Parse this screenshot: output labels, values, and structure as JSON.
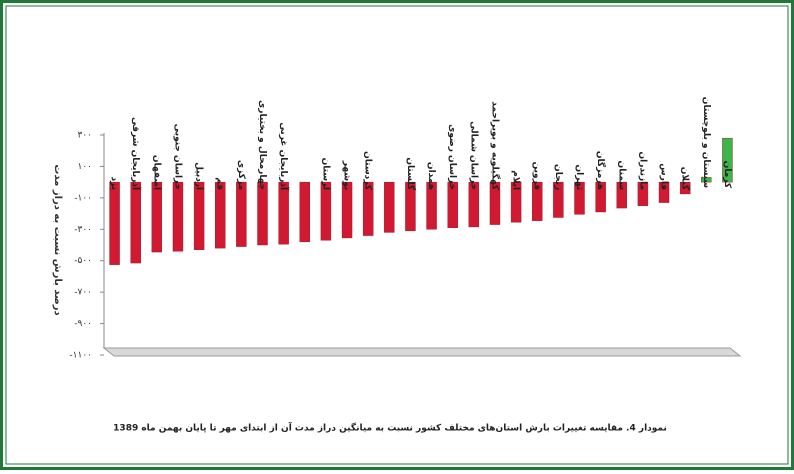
{
  "chart_data": {
    "type": "bar",
    "y_label": "درصد بارش نسبت به دراز مدت",
    "caption": "نمودار 4. مقایسه تغییرات بارش استان‌های مختلف کشور نسبت به میانگین دراز مدت آن از ابتدای مهر تا پایان بهمن ماه 1389",
    "categories": [
      "یزد",
      "آذربایجان شرقی",
      "اصفهان",
      "خراسان جنوبی",
      "اردبیل",
      "قم",
      "مرکزی",
      "چهارمحال و بختیاری",
      "آذربایجان غربی",
      null,
      "لرستان",
      "بوشهر",
      "کردستان",
      null,
      "گلستان",
      "همدان",
      "خراسان رضوی",
      "خراسان شمالی",
      "کهگیلویه و بویراحمد",
      "ایلام",
      "قزوین",
      "زنجان",
      "تهران",
      "هرمزگان",
      "سمنان",
      "مازندران",
      "فارس",
      "گیلان",
      "سیستان و بلوچستان",
      "کرمان"
    ],
    "values": [
      -525,
      -515,
      -445,
      -440,
      -430,
      -420,
      -410,
      -400,
      -395,
      -380,
      -370,
      -355,
      -340,
      -320,
      -310,
      -300,
      -290,
      -285,
      -270,
      -255,
      -245,
      -225,
      -205,
      -190,
      -165,
      -150,
      -130,
      -75,
      30,
      280
    ],
    "color": "#d11a32",
    "positive_color": "#3db54a",
    "ylim": [
      -1100,
      300
    ],
    "yticks": [
      {
        "value": 300,
        "label": "۳۰۰"
      },
      {
        "value": 100,
        "label": "۱۰۰"
      },
      {
        "value": -100,
        "label": "-۱۰۰"
      },
      {
        "value": -300,
        "label": "-۳۰۰"
      },
      {
        "value": -500,
        "label": "-۵۰۰"
      },
      {
        "value": -700,
        "label": "-۷۰۰"
      },
      {
        "value": -900,
        "label": "-۹۰۰"
      },
      {
        "value": -1100,
        "label": "-۱۱۰۰"
      }
    ],
    "grid": false
  }
}
